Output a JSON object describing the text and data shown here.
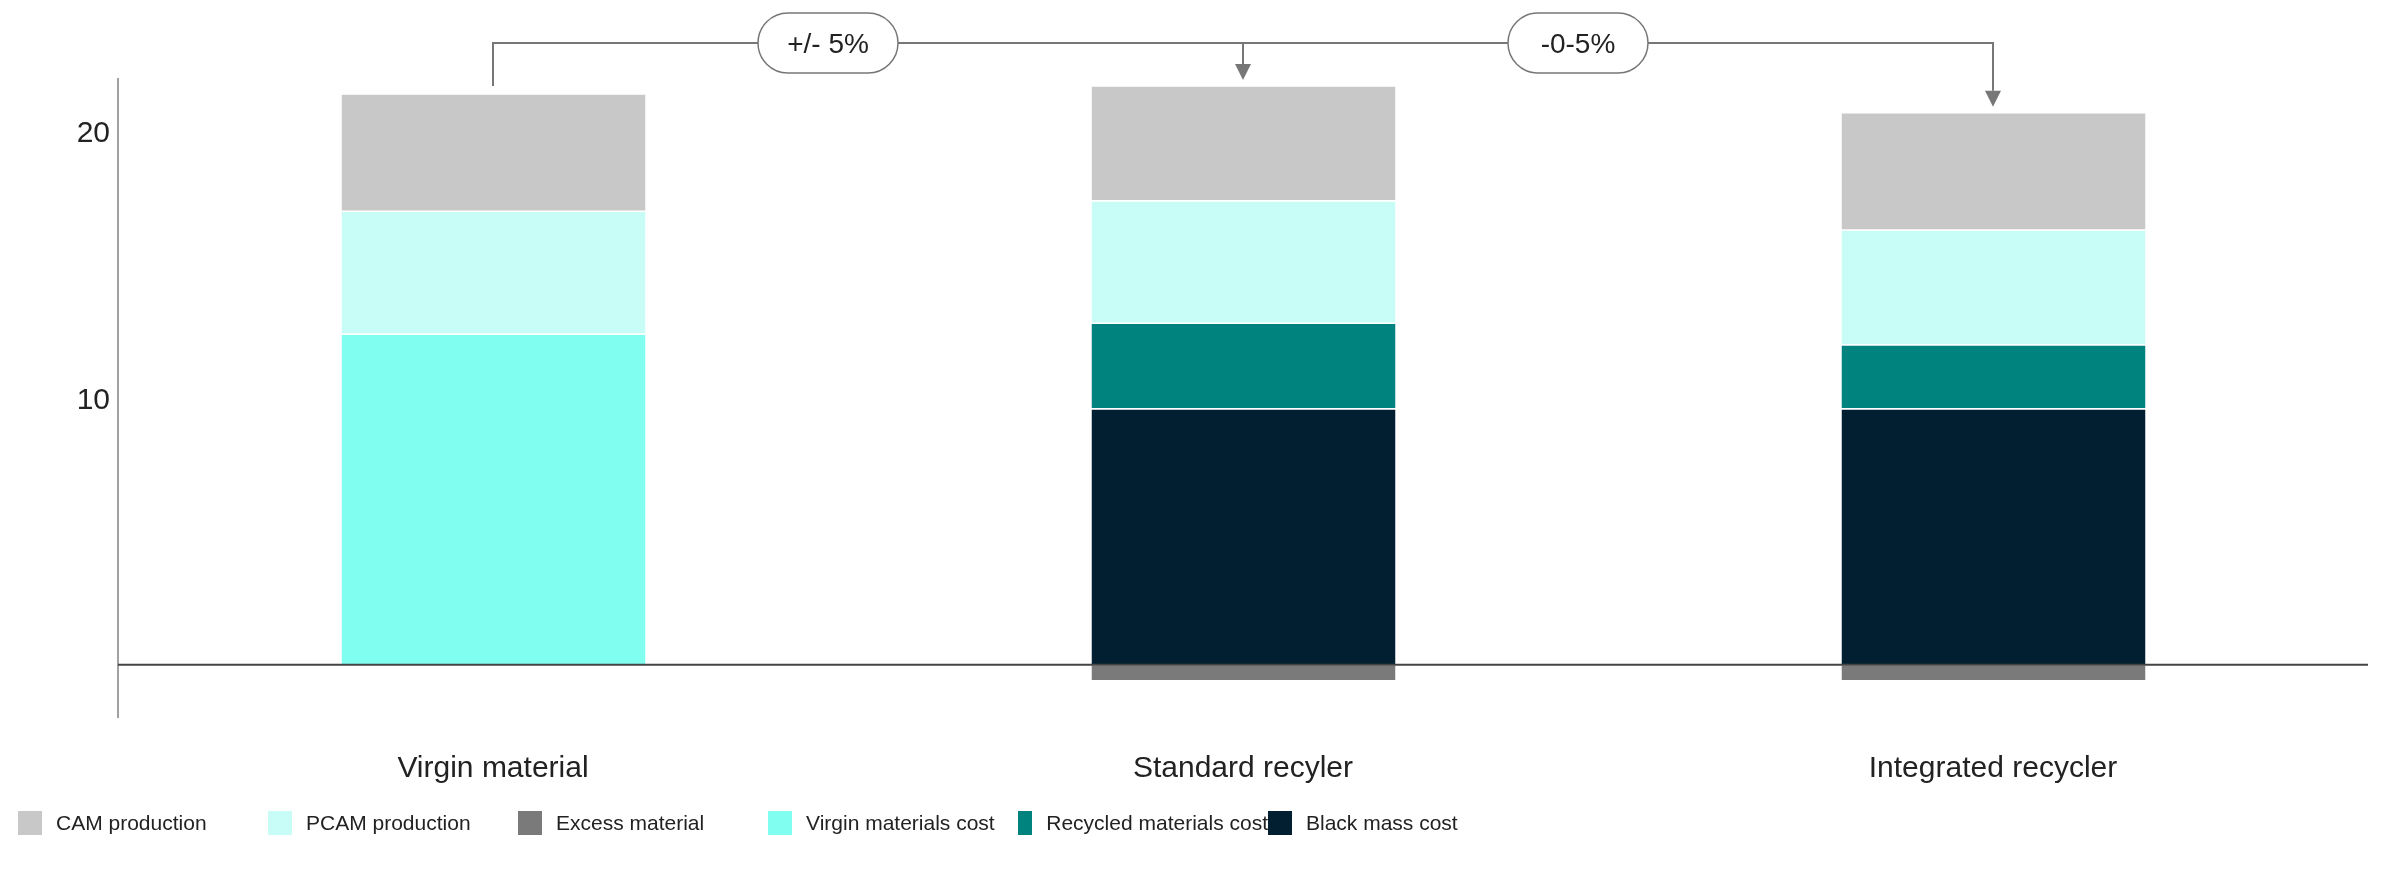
{
  "chart_data": {
    "type": "bar",
    "stacked": true,
    "categories": [
      "Virgin material",
      "Standard recyler",
      "Integrated recycler"
    ],
    "series": [
      {
        "name": "Black mass cost",
        "color": "#011f30",
        "values": [
          null,
          9.6,
          9.6
        ]
      },
      {
        "name": "Recycled materials cost",
        "color": "#00827f",
        "values": [
          null,
          3.2,
          2.4
        ]
      },
      {
        "name": "Virgin materials cost",
        "color": "#80fff0",
        "values": [
          12.4,
          null,
          null
        ]
      },
      {
        "name": "Excess material",
        "color": "#7a7a7a",
        "values": [
          null,
          -0.6,
          -0.6
        ]
      },
      {
        "name": "PCAM production",
        "color": "#c8fcf6",
        "values": [
          4.6,
          4.6,
          4.3
        ]
      },
      {
        "name": "CAM production",
        "color": "#c8c8c8",
        "values": [
          4.4,
          4.3,
          4.4
        ]
      }
    ],
    "ylim": [
      -2,
      22
    ],
    "yticks": [
      10,
      20
    ],
    "legend": "bottom",
    "ref_lines": [
      {
        "axis": "y",
        "value": 0,
        "color": "#444444"
      }
    ],
    "annotations": [
      "+/- 5%",
      "-0-5%"
    ]
  }
}
